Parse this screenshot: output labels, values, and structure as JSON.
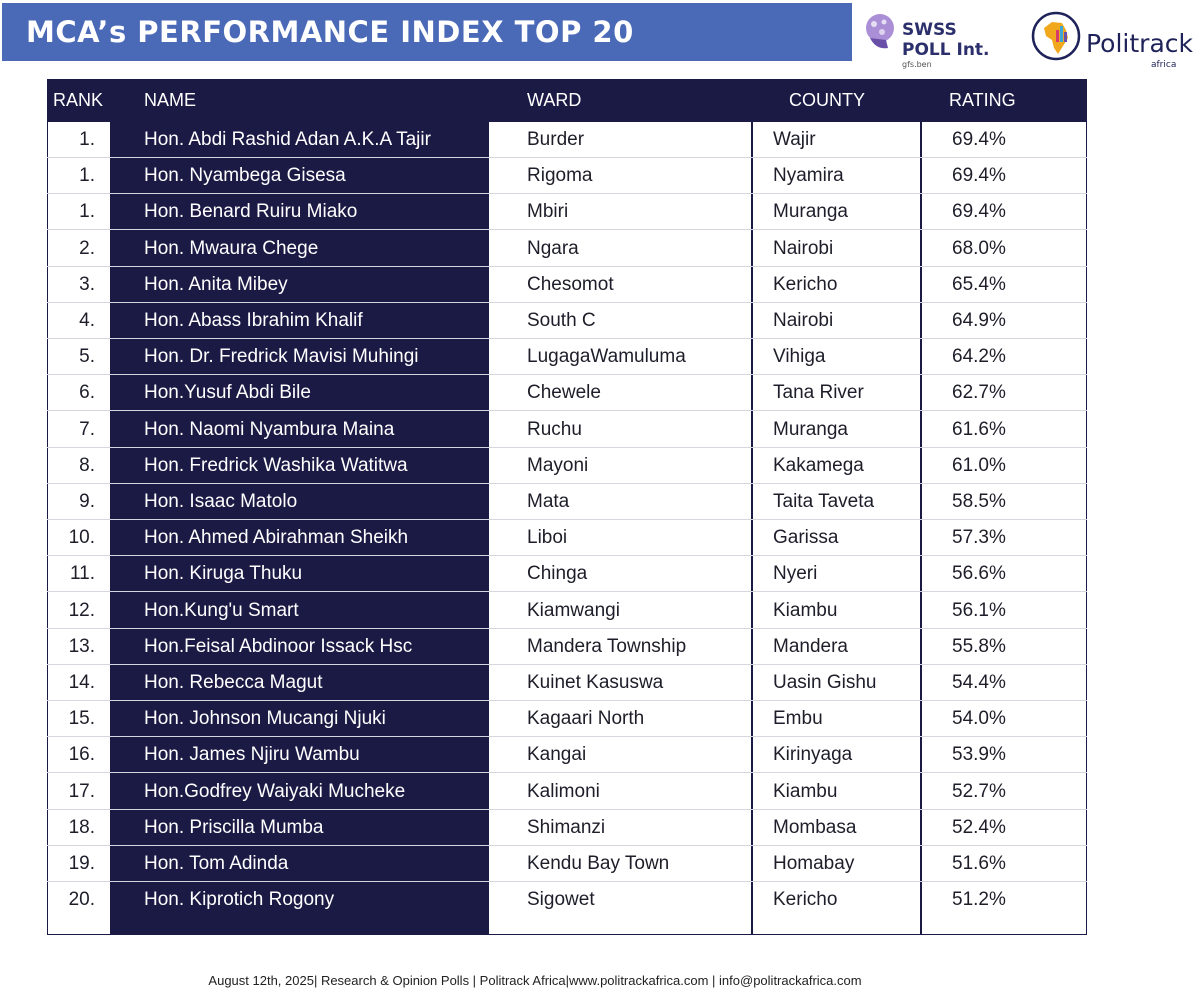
{
  "title": "MCA’s PERFORMANCE INDEX TOP 20",
  "logos": {
    "swss_line1": "SWSS",
    "swss_line2": "POLL Int.",
    "swss_line3": "gfs.ben",
    "politrack_name": "Politrack",
    "politrack_sub": "africa"
  },
  "table": {
    "headers": [
      "RANK",
      "NAME",
      "WARD",
      "COUNTY",
      "RATING"
    ],
    "rows": [
      {
        "rank": "1.",
        "name": "Hon. Abdi Rashid Adan A.K.A Tajir",
        "ward": "Burder",
        "county": "Wajir",
        "rating": "69.4%"
      },
      {
        "rank": "1.",
        "name": "Hon. Nyambega Gisesa",
        "ward": "Rigoma",
        "county": "Nyamira",
        "rating": "69.4%"
      },
      {
        "rank": "1.",
        "name": "Hon. Benard Ruiru Miako",
        "ward": "Mbiri",
        "county": "Muranga",
        "rating": "69.4%"
      },
      {
        "rank": "2.",
        "name": "Hon. Mwaura Chege",
        "ward": "Ngara",
        "county": "Nairobi",
        "rating": "68.0%"
      },
      {
        "rank": "3.",
        "name": "Hon. Anita Mibey",
        "ward": "Chesomot",
        "county": "Kericho",
        "rating": "65.4%"
      },
      {
        "rank": "4.",
        "name": "Hon. Abass Ibrahim Khalif",
        "ward": "South C",
        "county": "Nairobi",
        "rating": "64.9%"
      },
      {
        "rank": "5.",
        "name": "Hon. Dr. Fredrick Mavisi Muhingi",
        "ward": "LugagaWamuluma",
        "county": "Vihiga",
        "rating": "64.2%"
      },
      {
        "rank": "6.",
        "name": "Hon.Yusuf Abdi Bile",
        "ward": "Chewele",
        "county": "Tana River",
        "rating": "62.7%"
      },
      {
        "rank": "7.",
        "name": "Hon. Naomi Nyambura Maina",
        "ward": "Ruchu",
        "county": "Muranga",
        "rating": "61.6%"
      },
      {
        "rank": "8.",
        "name": "Hon. Fredrick Washika Watitwa",
        "ward": "Mayoni",
        "county": "Kakamega",
        "rating": "61.0%"
      },
      {
        "rank": "9.",
        "name": "Hon. Isaac Matolo",
        "ward": "Mata",
        "county": "Taita Taveta",
        "rating": "58.5%"
      },
      {
        "rank": "10.",
        "name": "Hon. Ahmed Abirahman Sheikh",
        "ward": "Liboi",
        "county": "Garissa",
        "rating": "57.3%"
      },
      {
        "rank": "11.",
        "name": "Hon. Kiruga Thuku",
        "ward": "Chinga",
        "county": "Nyeri",
        "rating": "56.6%"
      },
      {
        "rank": "12.",
        "name": "Hon.Kung'u Smart",
        "ward": "Kiamwangi",
        "county": "Kiambu",
        "rating": "56.1%"
      },
      {
        "rank": "13.",
        "name": "Hon.Feisal Abdinoor Issack Hsc",
        "ward": "Mandera Township",
        "county": "Mandera",
        "rating": "55.8%"
      },
      {
        "rank": "14.",
        "name": "Hon. Rebecca Magut",
        "ward": "Kuinet Kasuswa",
        "county": "Uasin Gishu",
        "rating": "54.4%"
      },
      {
        "rank": "15.",
        "name": "Hon. Johnson Mucangi Njuki",
        "ward": "Kagaari North",
        "county": "Embu",
        "rating": "54.0%"
      },
      {
        "rank": "16.",
        "name": "Hon. James Njiru  Wambu",
        "ward": "Kangai",
        "county": "Kirinyaga",
        "rating": "53.9%"
      },
      {
        "rank": "17.",
        "name": "Hon.Godfrey Waiyaki Mucheke",
        "ward": "Kalimoni",
        "county": "Kiambu",
        "rating": "52.7%"
      },
      {
        "rank": "18.",
        "name": "Hon. Priscilla Mumba",
        "ward": "Shimanzi",
        "county": "Mombasa",
        "rating": "52.4%"
      },
      {
        "rank": "19.",
        "name": "Hon. Tom Adinda",
        "ward": "Kendu Bay Town",
        "county": "Homabay",
        "rating": "51.6%"
      },
      {
        "rank": "20.",
        "name": "Hon. Kiprotich Rogony",
        "ward": "Sigowet",
        "county": "Kericho",
        "rating": "51.2%"
      }
    ]
  },
  "footer": "August 12th, 2025| Research & Opinion Polls | Politrack Africa|www.politrackafrica.com | info@politrackafrica.com",
  "colors": {
    "title_bar": "#4a6ab8",
    "navy": "#1b1a45"
  }
}
